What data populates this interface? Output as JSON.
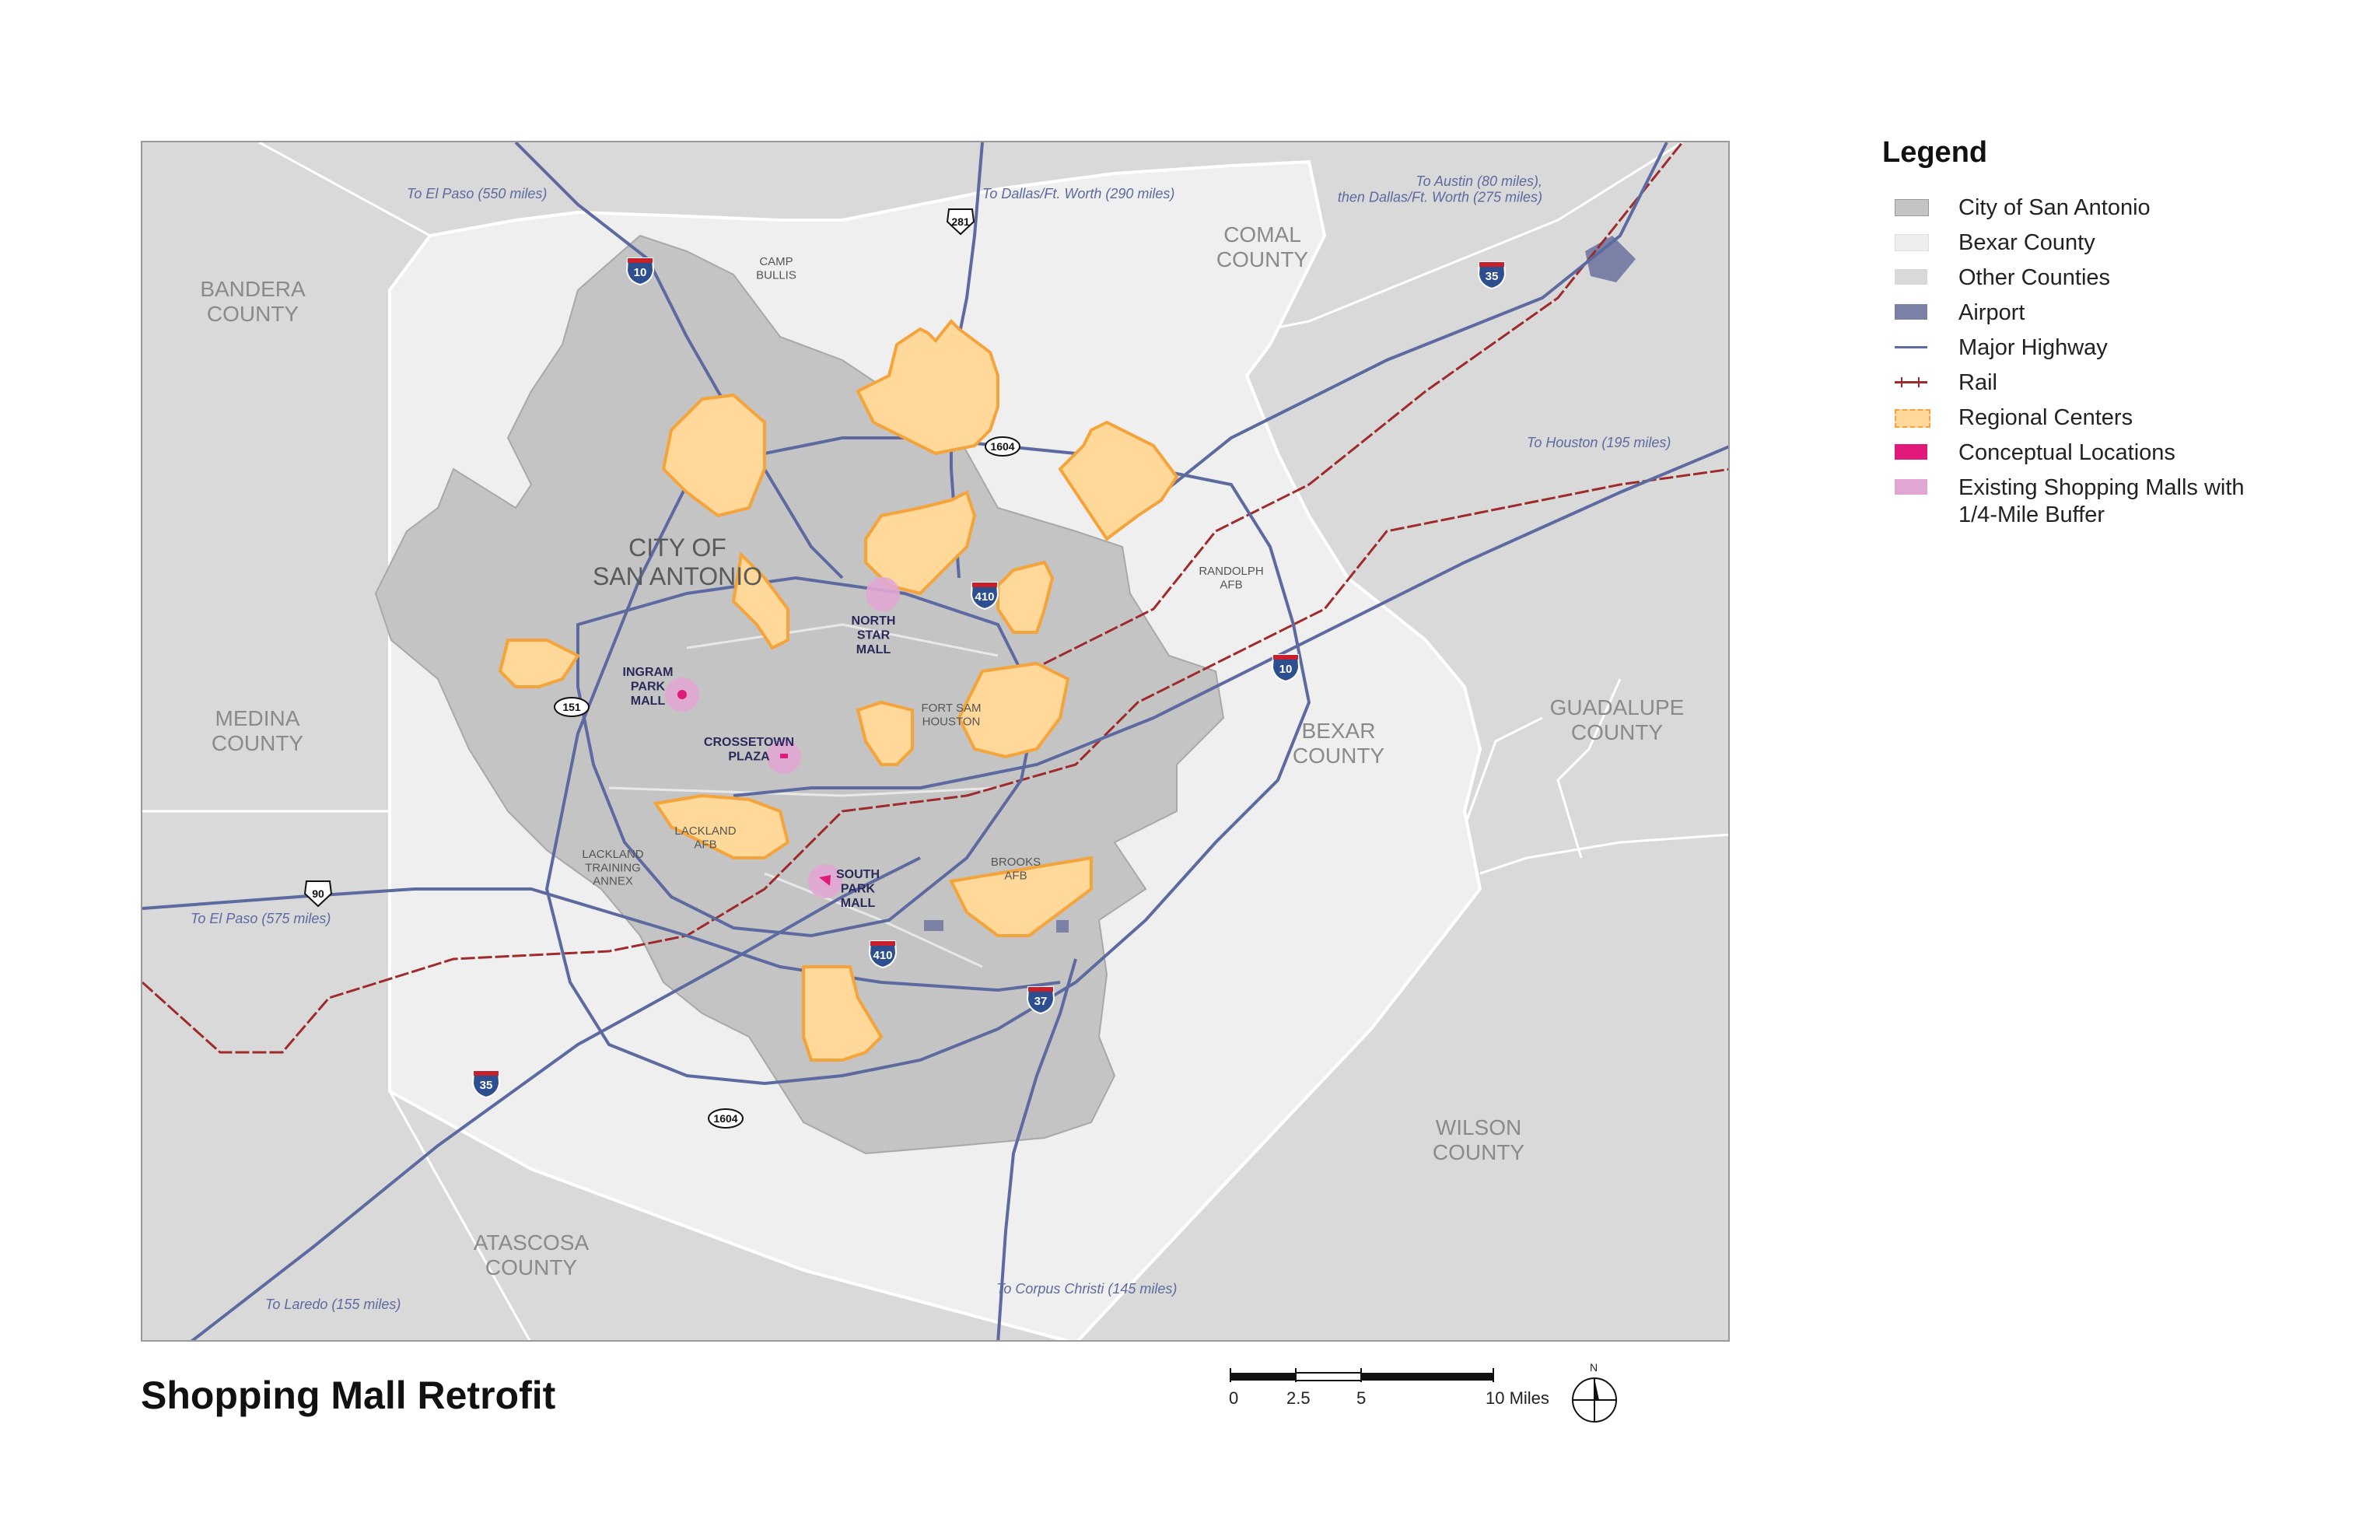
{
  "map": {
    "counties": {
      "bandera": "BANDERA\nCOUNTY",
      "medina": "MEDINA\nCOUNTY",
      "comal": "COMAL\nCOUNTY",
      "guadalupe": "GUADALUPE\nCOUNTY",
      "bexar": "BEXAR\nCOUNTY",
      "wilson": "WILSON\nCOUNTY",
      "atascosa": "ATASCOSA\nCOUNTY"
    },
    "city_label": "CITY OF\nSAN ANTONIO",
    "places": {
      "camp_bullis": "CAMP\nBULLIS",
      "randolph": "RANDOLPH\nAFB",
      "fort_sam": "FORT SAM\nHOUSTON",
      "lackland": "LACKLAND\nAFB",
      "lackland_annex": "LACKLAND\nTRAINING\nANNEX",
      "brooks": "BROOKS\nAFB"
    },
    "malls": {
      "north_star": "NORTH\nSTAR\nMALL",
      "ingram": "INGRAM\nPARK\nMALL",
      "crosstown": "CROSSETOWN\nPLAZA",
      "south_park": "SOUTH\nPARK\nMALL"
    },
    "destinations": {
      "el_paso_top": "To El Paso (550 miles)",
      "dallas": "To Dallas/Ft. Worth (290 miles)",
      "austin": "To Austin (80 miles),\nthen Dallas/Ft. Worth (275 miles)",
      "houston": "To Houston (195 miles)",
      "el_paso_bottom": "To El Paso (575 miles)",
      "laredo": "To Laredo (155 miles)",
      "corpus": "To Corpus Christi (145 miles)"
    },
    "shields": {
      "i10_north": "10",
      "i35_north": "35",
      "us281": "281",
      "loop1604_north": "1604",
      "i410_north": "410",
      "sh151": "151",
      "i10_east": "10",
      "us90": "90",
      "i410_south": "410",
      "i37": "37",
      "i35_south": "35",
      "loop1604_south": "1604"
    },
    "colors": {
      "city": "#c4c4c4",
      "bexar": "#eeeeef",
      "other_counties": "#d9d9d9",
      "airport": "#7b80a6",
      "highway": "#5d6aa0",
      "rail": "#9e2a2b",
      "regional_center": "#ffd89a",
      "regional_center_border": "#f4a43a",
      "conceptual": "#e0197a",
      "mall_buffer": "#e1a7d3"
    }
  },
  "legend": {
    "title": "Legend",
    "items": [
      {
        "label": "City of San Antonio",
        "icon": "city-swatch"
      },
      {
        "label": "Bexar County",
        "icon": "bexar-swatch"
      },
      {
        "label": "Other Counties",
        "icon": "other-counties-swatch"
      },
      {
        "label": "Airport",
        "icon": "airport-swatch"
      },
      {
        "label": "Major Highway",
        "icon": "highway-line"
      },
      {
        "label": "Rail",
        "icon": "rail-line"
      },
      {
        "label": "Regional Centers",
        "icon": "regional-center-swatch"
      },
      {
        "label": "Conceptual Locations",
        "icon": "conceptual-swatch"
      },
      {
        "label": "Existing Shopping Malls with\n1/4-Mile Buffer",
        "icon": "mall-buffer-swatch"
      }
    ]
  },
  "title": "Shopping Mall Retrofit",
  "scale": {
    "labels": [
      "0",
      "2.5",
      "5",
      "10 Miles"
    ]
  },
  "north_label": "N"
}
